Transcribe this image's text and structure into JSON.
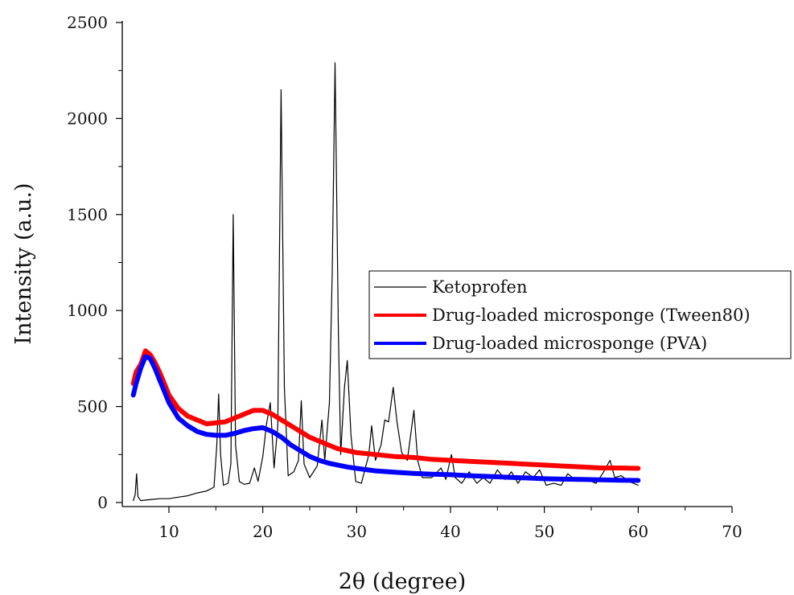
{
  "chart_data": {
    "type": "line",
    "title": "",
    "xlabel": "2θ (degree)",
    "ylabel": "Intensity (a.u.)",
    "xlim": [
      6,
      70
    ],
    "ylim": [
      0,
      2500
    ],
    "x_ticks": [
      10,
      20,
      30,
      40,
      50,
      60,
      70
    ],
    "y_ticks": [
      0,
      500,
      1000,
      1500,
      2000,
      2500
    ],
    "grid": false,
    "legend_position": "right",
    "series": [
      {
        "name": "Ketoprofen",
        "color": "#000000",
        "points": [
          [
            6.2,
            10
          ],
          [
            6.4,
            40
          ],
          [
            6.55,
            150
          ],
          [
            6.7,
            30
          ],
          [
            7,
            10
          ],
          [
            8,
            15
          ],
          [
            9,
            20
          ],
          [
            10,
            20
          ],
          [
            11,
            28
          ],
          [
            12,
            35
          ],
          [
            13,
            50
          ],
          [
            14,
            60
          ],
          [
            14.8,
            80
          ],
          [
            15.1,
            300
          ],
          [
            15.3,
            565
          ],
          [
            15.5,
            250
          ],
          [
            15.8,
            90
          ],
          [
            16.3,
            100
          ],
          [
            16.6,
            200
          ],
          [
            16.85,
            1500
          ],
          [
            17.1,
            300
          ],
          [
            17.5,
            110
          ],
          [
            18,
            95
          ],
          [
            18.6,
            100
          ],
          [
            19.1,
            180
          ],
          [
            19.5,
            110
          ],
          [
            20,
            240
          ],
          [
            20.4,
            410
          ],
          [
            20.8,
            520
          ],
          [
            21.2,
            180
          ],
          [
            21.6,
            400
          ],
          [
            21.95,
            2150
          ],
          [
            22.3,
            600
          ],
          [
            22.7,
            140
          ],
          [
            23.3,
            160
          ],
          [
            23.8,
            220
          ],
          [
            24.1,
            530
          ],
          [
            24.4,
            200
          ],
          [
            25,
            130
          ],
          [
            25.8,
            190
          ],
          [
            26.3,
            430
          ],
          [
            26.6,
            220
          ],
          [
            27.1,
            520
          ],
          [
            27.4,
            1200
          ],
          [
            27.7,
            2290
          ],
          [
            28.05,
            900
          ],
          [
            28.3,
            250
          ],
          [
            28.7,
            600
          ],
          [
            29,
            740
          ],
          [
            29.4,
            350
          ],
          [
            29.9,
            110
          ],
          [
            30.5,
            100
          ],
          [
            31.3,
            250
          ],
          [
            31.6,
            400
          ],
          [
            32,
            220
          ],
          [
            32.6,
            300
          ],
          [
            33,
            430
          ],
          [
            33.4,
            420
          ],
          [
            33.9,
            600
          ],
          [
            34.3,
            420
          ],
          [
            34.8,
            260
          ],
          [
            35.4,
            220
          ],
          [
            36.1,
            480
          ],
          [
            36.5,
            220
          ],
          [
            37,
            130
          ],
          [
            38,
            130
          ],
          [
            39,
            180
          ],
          [
            39.5,
            120
          ],
          [
            40.1,
            250
          ],
          [
            40.5,
            130
          ],
          [
            41.2,
            100
          ],
          [
            42,
            160
          ],
          [
            42.8,
            100
          ],
          [
            43.5,
            130
          ],
          [
            44.2,
            100
          ],
          [
            45,
            170
          ],
          [
            45.8,
            120
          ],
          [
            46.5,
            160
          ],
          [
            47.2,
            100
          ],
          [
            48,
            160
          ],
          [
            48.8,
            130
          ],
          [
            49.5,
            170
          ],
          [
            50.2,
            90
          ],
          [
            51,
            100
          ],
          [
            51.8,
            90
          ],
          [
            52.5,
            150
          ],
          [
            53.5,
            110
          ],
          [
            54.5,
            120
          ],
          [
            55.5,
            100
          ],
          [
            56.2,
            150
          ],
          [
            57,
            220
          ],
          [
            57.5,
            130
          ],
          [
            58.2,
            140
          ],
          [
            59,
            110
          ],
          [
            60,
            90
          ]
        ]
      },
      {
        "name": "Drug-loaded microsponge (Tween80)",
        "color": "#ff0000",
        "points": [
          [
            6.2,
            620
          ],
          [
            6.5,
            680
          ],
          [
            7,
            720
          ],
          [
            7.5,
            790
          ],
          [
            8,
            770
          ],
          [
            8.5,
            730
          ],
          [
            9,
            680
          ],
          [
            9.5,
            620
          ],
          [
            10,
            560
          ],
          [
            11,
            490
          ],
          [
            12,
            450
          ],
          [
            13,
            430
          ],
          [
            14,
            410
          ],
          [
            15,
            415
          ],
          [
            16,
            420
          ],
          [
            17,
            440
          ],
          [
            18,
            460
          ],
          [
            19,
            480
          ],
          [
            20,
            480
          ],
          [
            21,
            460
          ],
          [
            22,
            430
          ],
          [
            23,
            400
          ],
          [
            24,
            370
          ],
          [
            25,
            340
          ],
          [
            26,
            320
          ],
          [
            27,
            300
          ],
          [
            28,
            280
          ],
          [
            29,
            270
          ],
          [
            30,
            260
          ],
          [
            32,
            250
          ],
          [
            34,
            240
          ],
          [
            36,
            235
          ],
          [
            38,
            225
          ],
          [
            40,
            220
          ],
          [
            42,
            215
          ],
          [
            44,
            210
          ],
          [
            46,
            205
          ],
          [
            48,
            200
          ],
          [
            50,
            195
          ],
          [
            52,
            190
          ],
          [
            54,
            185
          ],
          [
            56,
            180
          ],
          [
            58,
            180
          ],
          [
            60,
            178
          ]
        ]
      },
      {
        "name": "Drug-loaded microsponge (PVA)",
        "color": "#0000ff",
        "points": [
          [
            6.2,
            560
          ],
          [
            6.5,
            620
          ],
          [
            7,
            700
          ],
          [
            7.5,
            760
          ],
          [
            8,
            750
          ],
          [
            8.5,
            700
          ],
          [
            9,
            640
          ],
          [
            9.5,
            580
          ],
          [
            10,
            520
          ],
          [
            11,
            440
          ],
          [
            12,
            400
          ],
          [
            13,
            370
          ],
          [
            14,
            355
          ],
          [
            15,
            350
          ],
          [
            16,
            350
          ],
          [
            17,
            360
          ],
          [
            18,
            375
          ],
          [
            19,
            385
          ],
          [
            20,
            390
          ],
          [
            21,
            370
          ],
          [
            22,
            340
          ],
          [
            23,
            300
          ],
          [
            24,
            270
          ],
          [
            25,
            240
          ],
          [
            26,
            220
          ],
          [
            27,
            205
          ],
          [
            28,
            195
          ],
          [
            29,
            185
          ],
          [
            30,
            178
          ],
          [
            32,
            165
          ],
          [
            34,
            158
          ],
          [
            36,
            152
          ],
          [
            38,
            148
          ],
          [
            40,
            145
          ],
          [
            42,
            140
          ],
          [
            44,
            136
          ],
          [
            46,
            132
          ],
          [
            48,
            128
          ],
          [
            50,
            124
          ],
          [
            52,
            122
          ],
          [
            54,
            120
          ],
          [
            56,
            118
          ],
          [
            58,
            116
          ],
          [
            60,
            115
          ]
        ]
      }
    ]
  }
}
